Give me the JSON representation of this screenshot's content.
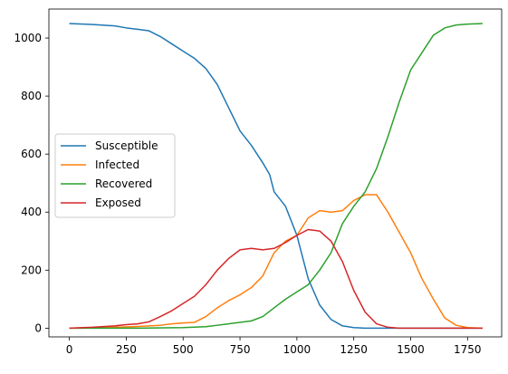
{
  "chart_data": {
    "type": "line",
    "xlim": [
      -90,
      1900
    ],
    "ylim": [
      -30,
      1100
    ],
    "x_ticks": [
      0,
      250,
      500,
      750,
      1000,
      1250,
      1500,
      1750
    ],
    "x_tick_labels": [
      "0",
      "250",
      "500",
      "750",
      "1000",
      "1250",
      "1500",
      "1750"
    ],
    "y_ticks": [
      0,
      200,
      400,
      600,
      800,
      1000
    ],
    "y_tick_labels": [
      "0",
      "200",
      "400",
      "600",
      "800",
      "1000"
    ],
    "grid": false,
    "legend_position": "center-left",
    "series": [
      {
        "name": "Susceptible",
        "color": "#1f77b4",
        "points": [
          [
            0,
            1050
          ],
          [
            100,
            1047
          ],
          [
            200,
            1042
          ],
          [
            250,
            1035
          ],
          [
            300,
            1030
          ],
          [
            350,
            1025
          ],
          [
            400,
            1005
          ],
          [
            450,
            980
          ],
          [
            500,
            955
          ],
          [
            550,
            930
          ],
          [
            600,
            895
          ],
          [
            650,
            840
          ],
          [
            700,
            760
          ],
          [
            750,
            680
          ],
          [
            800,
            630
          ],
          [
            850,
            570
          ],
          [
            880,
            530
          ],
          [
            900,
            470
          ],
          [
            950,
            420
          ],
          [
            1000,
            320
          ],
          [
            1050,
            170
          ],
          [
            1100,
            80
          ],
          [
            1150,
            30
          ],
          [
            1200,
            8
          ],
          [
            1250,
            2
          ],
          [
            1300,
            0
          ],
          [
            1816,
            0
          ]
        ]
      },
      {
        "name": "Infected",
        "color": "#ff7f0e",
        "points": [
          [
            0,
            0
          ],
          [
            200,
            3
          ],
          [
            300,
            6
          ],
          [
            400,
            10
          ],
          [
            450,
            15
          ],
          [
            500,
            18
          ],
          [
            550,
            20
          ],
          [
            600,
            40
          ],
          [
            650,
            70
          ],
          [
            700,
            95
          ],
          [
            750,
            115
          ],
          [
            800,
            140
          ],
          [
            850,
            180
          ],
          [
            900,
            260
          ],
          [
            950,
            300
          ],
          [
            1000,
            320
          ],
          [
            1050,
            380
          ],
          [
            1100,
            405
          ],
          [
            1150,
            400
          ],
          [
            1200,
            405
          ],
          [
            1250,
            440
          ],
          [
            1300,
            460
          ],
          [
            1350,
            460
          ],
          [
            1400,
            400
          ],
          [
            1450,
            330
          ],
          [
            1500,
            260
          ],
          [
            1550,
            170
          ],
          [
            1600,
            100
          ],
          [
            1650,
            35
          ],
          [
            1700,
            10
          ],
          [
            1750,
            2
          ],
          [
            1816,
            0
          ]
        ]
      },
      {
        "name": "Recovered",
        "color": "#2ca02c",
        "points": [
          [
            0,
            0
          ],
          [
            300,
            0
          ],
          [
            500,
            2
          ],
          [
            600,
            5
          ],
          [
            650,
            10
          ],
          [
            700,
            15
          ],
          [
            800,
            25
          ],
          [
            850,
            40
          ],
          [
            900,
            70
          ],
          [
            950,
            100
          ],
          [
            1000,
            125
          ],
          [
            1050,
            150
          ],
          [
            1100,
            200
          ],
          [
            1150,
            260
          ],
          [
            1200,
            360
          ],
          [
            1250,
            420
          ],
          [
            1300,
            470
          ],
          [
            1350,
            550
          ],
          [
            1400,
            660
          ],
          [
            1450,
            780
          ],
          [
            1500,
            890
          ],
          [
            1550,
            950
          ],
          [
            1600,
            1010
          ],
          [
            1650,
            1035
          ],
          [
            1700,
            1045
          ],
          [
            1750,
            1048
          ],
          [
            1816,
            1050
          ]
        ]
      },
      {
        "name": "Exposed",
        "color": "#d62728",
        "points": [
          [
            0,
            0
          ],
          [
            100,
            3
          ],
          [
            200,
            8
          ],
          [
            250,
            12
          ],
          [
            300,
            15
          ],
          [
            350,
            22
          ],
          [
            400,
            40
          ],
          [
            450,
            60
          ],
          [
            500,
            85
          ],
          [
            550,
            110
          ],
          [
            600,
            150
          ],
          [
            650,
            200
          ],
          [
            700,
            240
          ],
          [
            750,
            270
          ],
          [
            800,
            275
          ],
          [
            850,
            270
          ],
          [
            900,
            275
          ],
          [
            950,
            295
          ],
          [
            1000,
            320
          ],
          [
            1050,
            340
          ],
          [
            1100,
            335
          ],
          [
            1150,
            300
          ],
          [
            1200,
            230
          ],
          [
            1250,
            130
          ],
          [
            1300,
            55
          ],
          [
            1350,
            15
          ],
          [
            1400,
            3
          ],
          [
            1450,
            0
          ],
          [
            1816,
            0
          ]
        ]
      }
    ]
  }
}
